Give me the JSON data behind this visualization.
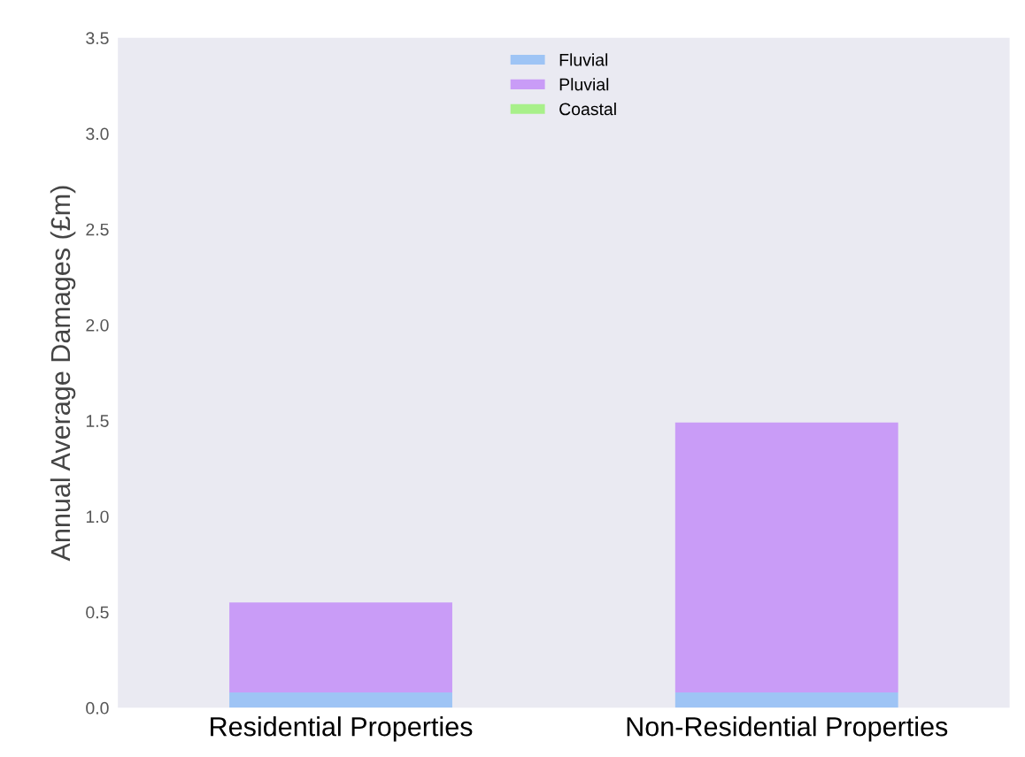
{
  "chart_data": {
    "type": "bar",
    "stacked": true,
    "ylabel": "Annual Average Damages (£m)",
    "categories": [
      "Residential Properties",
      "Non-Residential Properties"
    ],
    "series": [
      {
        "name": "Fluvial",
        "color": "#9ec4f5",
        "values": [
          0.08,
          0.08
        ]
      },
      {
        "name": "Pluvial",
        "color": "#c99cf7",
        "values": [
          0.47,
          1.41
        ]
      },
      {
        "name": "Coastal",
        "color": "#a8f08a",
        "values": [
          0,
          0
        ]
      }
    ],
    "ylim": [
      0,
      3.5
    ],
    "yticks": [
      {
        "value": 0,
        "label": "0.0"
      },
      0.5,
      {
        "value": 1,
        "label": "1.0"
      },
      1.5,
      {
        "value": 2,
        "label": "2.0"
      },
      2.5,
      {
        "value": 3,
        "label": "3.0"
      },
      3.5
    ],
    "grid": false,
    "legend": "top"
  }
}
